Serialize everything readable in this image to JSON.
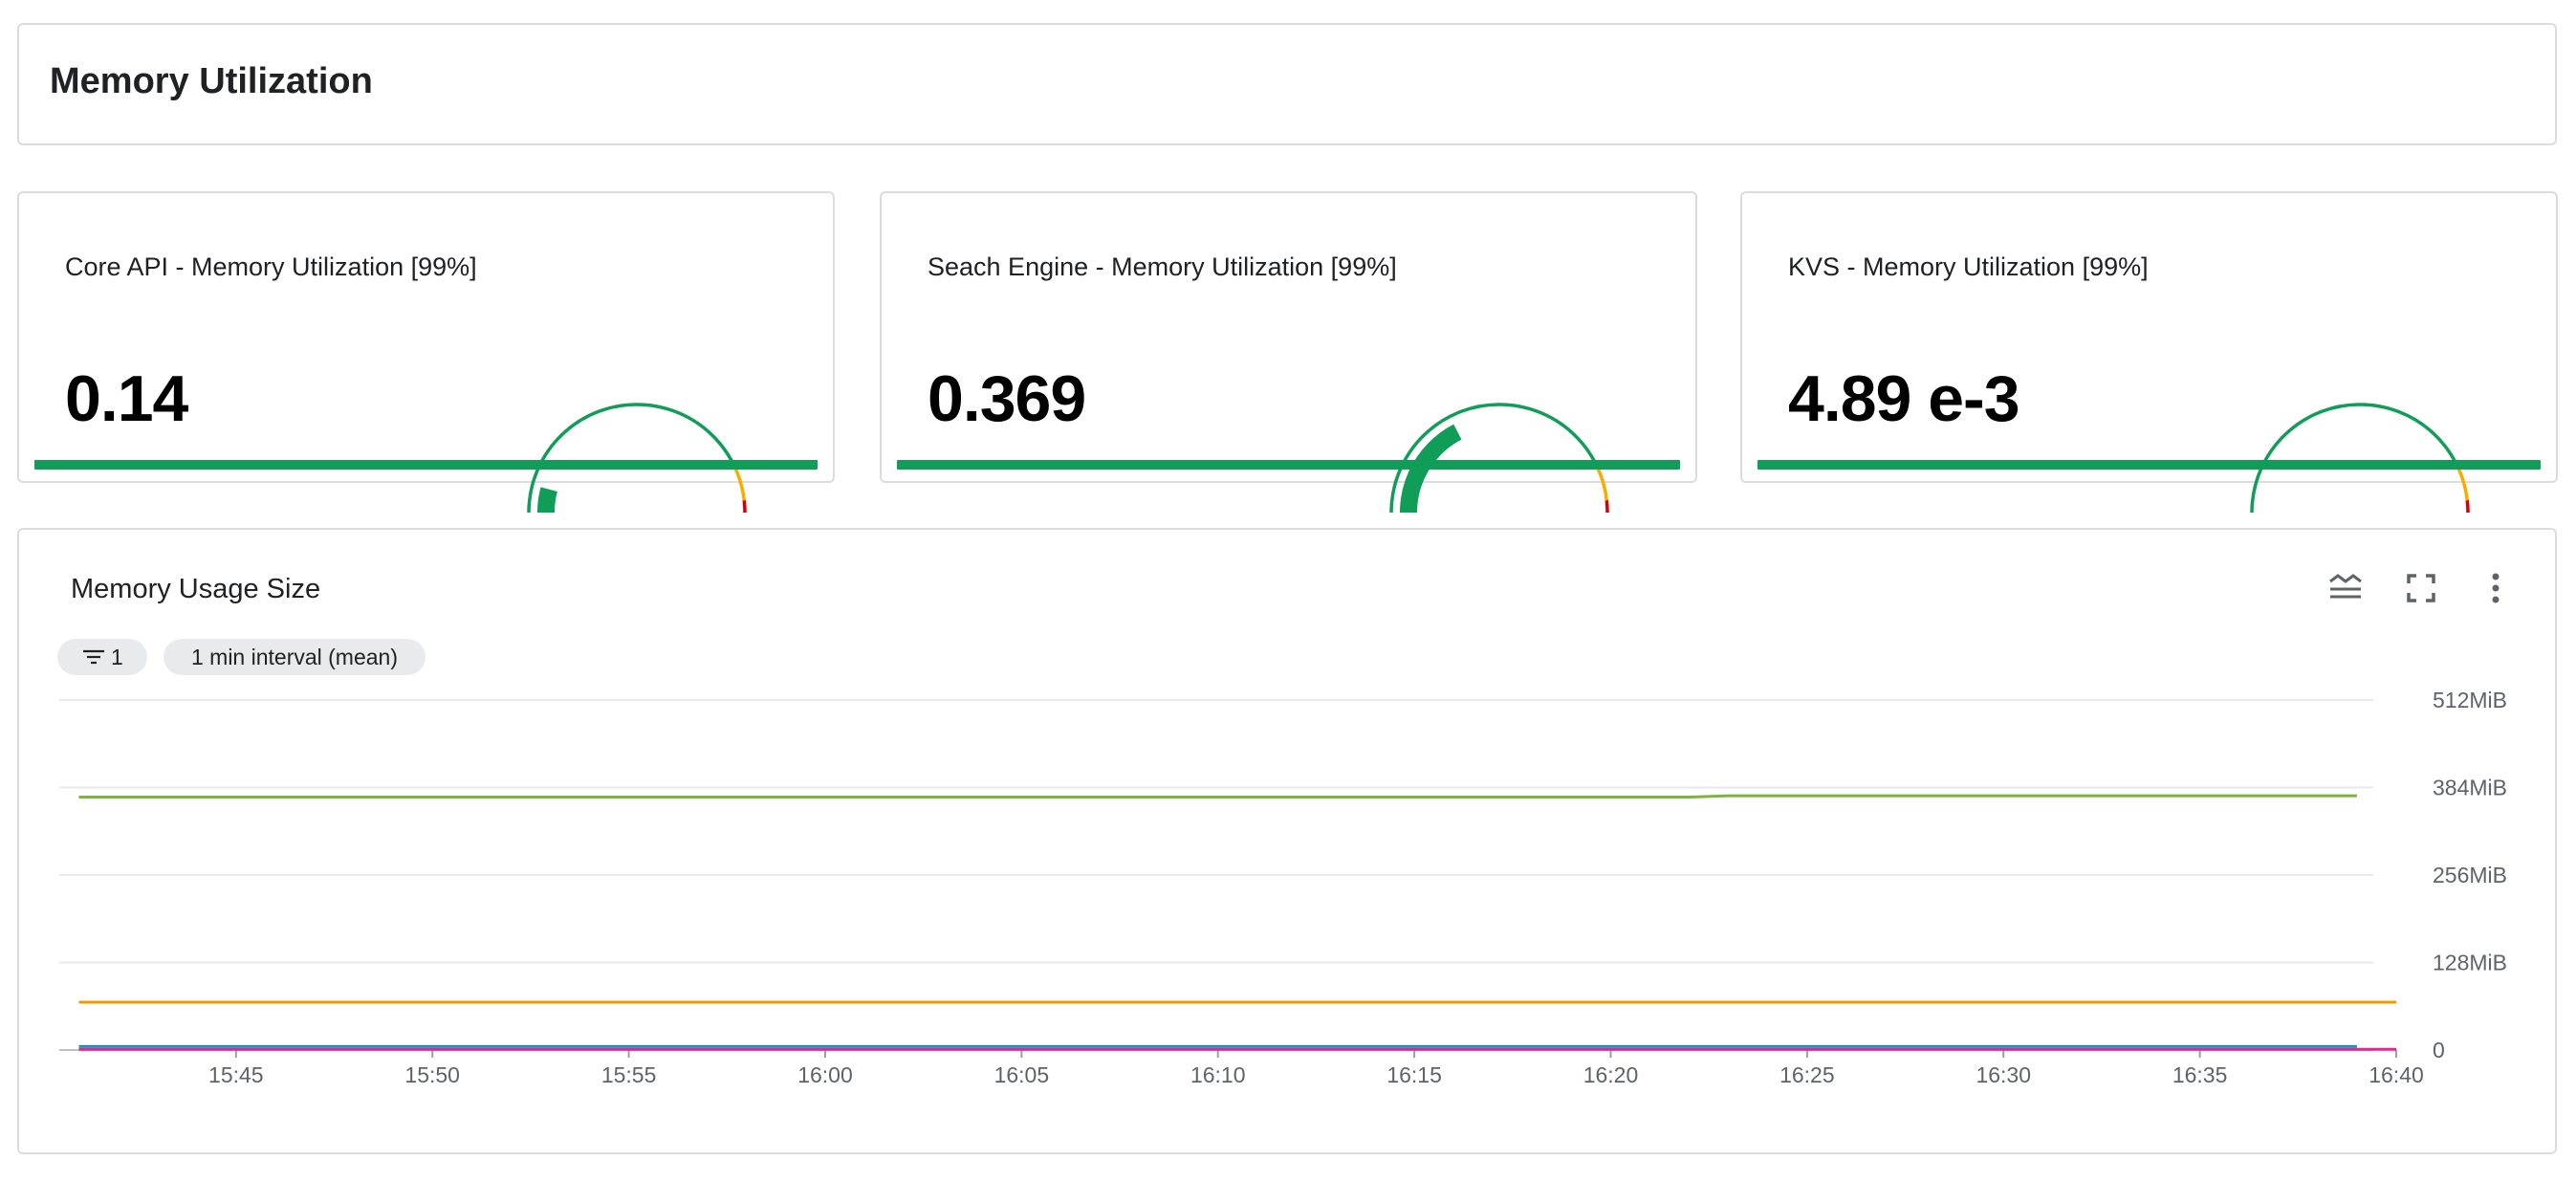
{
  "page": {
    "title": "Memory Utilization"
  },
  "gauges": [
    {
      "title": "Core API - Memory Utilization [99%]",
      "value": "0.14",
      "fraction": 0.14
    },
    {
      "title": "Seach Engine - Memory Utilization [99%]",
      "value": "0.369",
      "fraction": 0.369
    },
    {
      "title": "KVS - Memory Utilization [99%]",
      "value": "4.89 e-3",
      "fraction": 0.00489
    }
  ],
  "gauge_colors": {
    "ok": "#0f9d58",
    "warn": "#f9ab00",
    "critical": "#d50000"
  },
  "chart_card": {
    "title": "Memory Usage Size",
    "filter_count": "1",
    "interval_label": "1 min interval (mean)",
    "icons": [
      "legend-toggle-icon",
      "fullscreen-icon",
      "more-vert-icon"
    ]
  },
  "chart_data": {
    "type": "line",
    "x": [
      "15:41",
      "15:46",
      "15:50",
      "15:55",
      "16:00",
      "16:05",
      "16:10",
      "16:15",
      "16:20",
      "16:22",
      "16:23",
      "16:25",
      "16:30",
      "16:35",
      "16:39",
      "16:40"
    ],
    "x_ticks": [
      "15:45",
      "15:50",
      "15:55",
      "16:00",
      "16:05",
      "16:10",
      "16:15",
      "16:20",
      "16:25",
      "16:30",
      "16:35",
      "16:40"
    ],
    "y_ticks": [
      "0",
      "128MiB",
      "256MiB",
      "384MiB",
      "512MiB"
    ],
    "ylim": [
      0,
      512
    ],
    "yunit": "MiB",
    "grid": true,
    "series": [
      {
        "color": "#7cb342",
        "values": [
          370,
          370,
          370,
          370,
          370,
          370,
          370,
          370,
          370,
          370,
          372,
          372,
          372,
          372,
          372,
          null
        ]
      },
      {
        "color": "#f29900",
        "values": [
          70,
          70,
          70,
          70,
          70,
          70,
          70,
          70,
          70,
          70,
          70,
          70,
          70,
          70,
          70,
          70
        ]
      },
      {
        "color": "#1a73e8",
        "values": [
          5,
          5,
          5,
          5,
          5,
          5,
          5,
          5,
          5,
          5,
          5,
          5,
          5,
          5,
          5,
          null
        ]
      },
      {
        "color": "#12b5cb",
        "values": [
          3,
          3,
          3,
          3,
          3,
          3,
          3,
          3,
          3,
          3,
          3,
          3,
          3,
          3,
          3,
          null
        ]
      },
      {
        "color": "#e52592",
        "values": [
          1,
          1,
          1,
          1,
          1,
          1,
          1,
          1,
          1,
          1,
          1,
          1,
          1,
          1,
          1,
          1
        ]
      }
    ]
  }
}
